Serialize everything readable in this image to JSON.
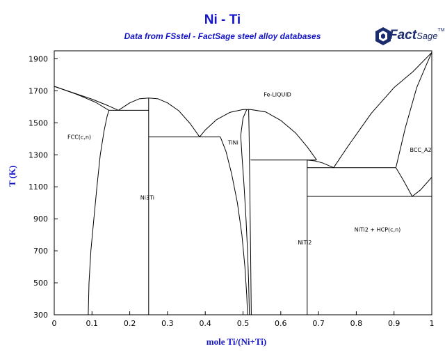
{
  "chart_data": {
    "type": "line",
    "title": "Ni - Ti",
    "subtitle": "Data from FSstel - FactSage steel alloy databases",
    "logo_text": "FactSage",
    "xlabel": "mole Ti/(Ni+Ti)",
    "ylabel": "T (K)",
    "xlim": [
      0,
      1
    ],
    "ylim": [
      300,
      1950
    ],
    "xticks": [
      "0",
      "0.1",
      "0.2",
      "0.3",
      "0.4",
      "0.5",
      "0.6",
      "0.7",
      "0.8",
      "0.9",
      "1"
    ],
    "yticks": [
      "300",
      "500",
      "700",
      "900",
      "1100",
      "1300",
      "1500",
      "1700",
      "1900"
    ],
    "grid": false,
    "region_labels": [
      {
        "text": "Fe-LIQUID",
        "x": 0.555,
        "y": 1665
      },
      {
        "text": "FCC(c,n)",
        "x": 0.035,
        "y": 1400
      },
      {
        "text": "TiNi",
        "x": 0.46,
        "y": 1365
      },
      {
        "text": "BCC_A2",
        "x": 0.942,
        "y": 1318
      },
      {
        "text": "Ni3Ti",
        "x": 0.228,
        "y": 1020
      },
      {
        "text": "NiTi2",
        "x": 0.645,
        "y": 740
      },
      {
        "text": "NiTi2 + HCP(c,n)",
        "x": 0.795,
        "y": 820
      }
    ],
    "series": [
      {
        "values": [
          [
            0,
            1728
          ],
          [
            0.05,
            1688
          ],
          [
            0.1,
            1648
          ],
          [
            0.14,
            1610
          ],
          [
            0.17,
            1578
          ]
        ]
      },
      {
        "values": [
          [
            0,
            1728
          ],
          [
            0.06,
            1678
          ],
          [
            0.11,
            1628
          ],
          [
            0.145,
            1578
          ]
        ]
      },
      {
        "values": [
          [
            0.09,
            300
          ],
          [
            0.092,
            500
          ],
          [
            0.097,
            700
          ],
          [
            0.105,
            900
          ],
          [
            0.113,
            1100
          ],
          [
            0.122,
            1300
          ],
          [
            0.132,
            1450
          ],
          [
            0.14,
            1540
          ],
          [
            0.145,
            1578
          ]
        ]
      },
      {
        "values": [
          [
            0.145,
            1578
          ],
          [
            0.25,
            1578
          ]
        ]
      },
      {
        "values": [
          [
            0.17,
            1578
          ],
          [
            0.2,
            1625
          ],
          [
            0.225,
            1650
          ],
          [
            0.25,
            1655
          ],
          [
            0.275,
            1650
          ],
          [
            0.3,
            1625
          ],
          [
            0.33,
            1575
          ],
          [
            0.36,
            1495
          ],
          [
            0.385,
            1412
          ]
        ]
      },
      {
        "values": [
          [
            0.25,
            300
          ],
          [
            0.25,
            1655
          ]
        ]
      },
      {
        "values": [
          [
            0.25,
            1412
          ],
          [
            0.44,
            1412
          ]
        ]
      },
      {
        "values": [
          [
            0.385,
            1412
          ],
          [
            0.4,
            1455
          ],
          [
            0.43,
            1520
          ],
          [
            0.465,
            1565
          ],
          [
            0.5,
            1583
          ],
          [
            0.52,
            1583
          ]
        ]
      },
      {
        "values": [
          [
            0.44,
            1412
          ],
          [
            0.455,
            1320
          ],
          [
            0.47,
            1180
          ],
          [
            0.485,
            1000
          ],
          [
            0.497,
            800
          ],
          [
            0.505,
            600
          ],
          [
            0.51,
            420
          ],
          [
            0.512,
            300
          ]
        ]
      },
      {
        "values": [
          [
            0.51,
            1583
          ],
          [
            0.5,
            1530
          ],
          [
            0.494,
            1420
          ],
          [
            0.497,
            1300
          ],
          [
            0.503,
            1100
          ],
          [
            0.508,
            900
          ],
          [
            0.512,
            700
          ],
          [
            0.515,
            500
          ],
          [
            0.517,
            300
          ]
        ]
      },
      {
        "values": [
          [
            0.515,
            1583
          ],
          [
            0.516,
            1450
          ],
          [
            0.517,
            1300
          ],
          [
            0.518,
            1100
          ],
          [
            0.519,
            900
          ],
          [
            0.52,
            700
          ],
          [
            0.521,
            500
          ],
          [
            0.522,
            300
          ]
        ]
      },
      {
        "values": [
          [
            0.52,
            1583
          ],
          [
            0.56,
            1568
          ],
          [
            0.6,
            1515
          ],
          [
            0.64,
            1435
          ],
          [
            0.67,
            1350
          ],
          [
            0.695,
            1268
          ]
        ]
      },
      {
        "values": [
          [
            0.52,
            1268
          ],
          [
            0.695,
            1268
          ]
        ]
      },
      {
        "values": [
          [
            0.67,
            300
          ],
          [
            0.67,
            1268
          ]
        ]
      },
      {
        "values": [
          [
            0.67,
            1268
          ],
          [
            0.69,
            1262
          ],
          [
            0.71,
            1250
          ],
          [
            0.74,
            1220
          ]
        ]
      },
      {
        "values": [
          [
            0.67,
            1220
          ],
          [
            0.905,
            1220
          ]
        ]
      },
      {
        "values": [
          [
            0.67,
            1040
          ],
          [
            1.0,
            1040
          ]
        ]
      },
      {
        "values": [
          [
            0.74,
            1220
          ],
          [
            0.78,
            1360
          ],
          [
            0.84,
            1560
          ],
          [
            0.9,
            1720
          ],
          [
            0.95,
            1820
          ],
          [
            1.0,
            1940
          ]
        ]
      },
      {
        "values": [
          [
            0.905,
            1220
          ],
          [
            0.93,
            1470
          ],
          [
            0.96,
            1720
          ],
          [
            0.985,
            1860
          ],
          [
            1.0,
            1940
          ]
        ]
      },
      {
        "values": [
          [
            0.905,
            1220
          ],
          [
            0.925,
            1140
          ],
          [
            0.948,
            1040
          ]
        ]
      },
      {
        "values": [
          [
            0.948,
            1040
          ],
          [
            0.97,
            1080
          ],
          [
            1.0,
            1160
          ]
        ]
      }
    ]
  }
}
